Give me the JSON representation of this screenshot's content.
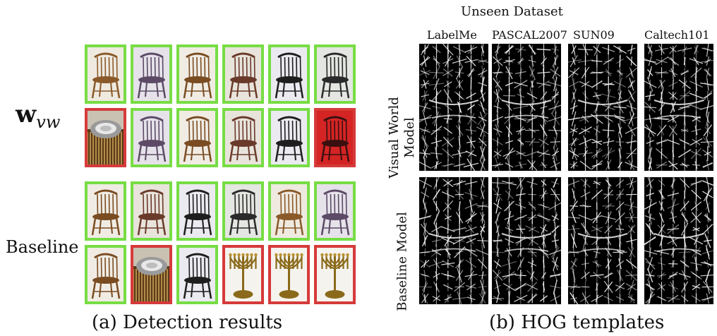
{
  "left_panel": {
    "row_label_top_prefix": "w",
    "row_label_top_sub": "vw",
    "row_label_bottom": "Baseline",
    "caption": "(a) Detection results",
    "top_rows": [
      [
        "correct",
        "correct",
        "correct",
        "correct",
        "correct",
        "correct"
      ],
      [
        "miss",
        "correct",
        "correct",
        "correct",
        "correct",
        "miss"
      ]
    ],
    "bottom_rows": [
      [
        "correct",
        "correct",
        "correct",
        "correct",
        "correct",
        "correct"
      ],
      [
        "correct",
        "miss",
        "correct",
        "miss",
        "miss",
        "miss"
      ]
    ],
    "top_images": [
      [
        "chair",
        "chair",
        "chair",
        "chair",
        "chair",
        "chair"
      ],
      [
        "plate",
        "chair",
        "chair",
        "chair",
        "chair",
        "chair-red"
      ]
    ],
    "bottom_images": [
      [
        "chair",
        "chair",
        "chair",
        "chair",
        "chair",
        "chair"
      ],
      [
        "chair",
        "plate",
        "chair",
        "menorah",
        "menorah",
        "menorah"
      ]
    ],
    "colors": {
      "correct": "#77dd44",
      "miss": "#d63a3a"
    }
  },
  "right_panel": {
    "title": "Unseen Dataset",
    "datasets": [
      "LabelMe",
      "PASCAL2007",
      "SUN09",
      "Caltech101"
    ],
    "row_labels": [
      "Visual World Model",
      "Baseline Model"
    ],
    "row_label_lines": [
      [
        "Visual World",
        "Model"
      ],
      [
        "Baseline Model"
      ]
    ],
    "caption": "(b) HOG templates"
  }
}
